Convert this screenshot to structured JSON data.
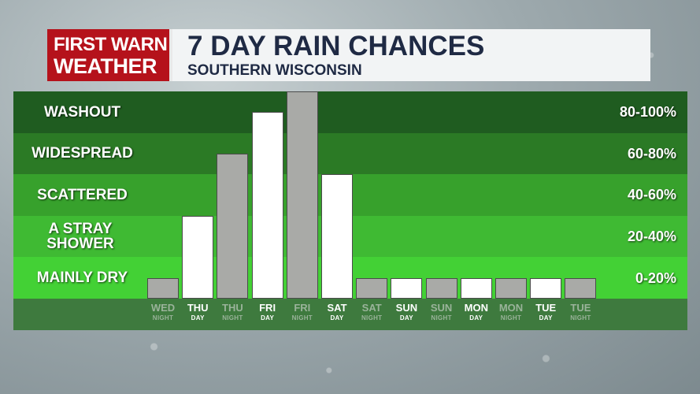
{
  "header": {
    "logo_line1": "FIRST WARN",
    "logo_line2": "WEATHER",
    "title": "7 DAY RAIN CHANCES",
    "subtitle": "SOUTHERN WISCONSIN"
  },
  "colors": {
    "brand_red": "#b5121b",
    "title_navy": "#1f2a44",
    "day_bar": "#ffffff",
    "night_bar": "#a9aaa7",
    "band_washout": "#1f5c20",
    "band_widespread": "#2b7a25",
    "band_scattered": "#37a12c",
    "band_stray": "#3fba33",
    "band_dry": "#43d135"
  },
  "chart_data": {
    "type": "bar",
    "title": "7 DAY RAIN CHANCES",
    "subtitle": "SOUTHERN WISCONSIN",
    "ylim": [
      0,
      100
    ],
    "bands": [
      {
        "label": "WASHOUT",
        "range": "80-100%",
        "from": 80,
        "to": 100
      },
      {
        "label": "WIDESPREAD",
        "range": "60-80%",
        "from": 60,
        "to": 80
      },
      {
        "label": "SCATTERED",
        "range": "40-60%",
        "from": 40,
        "to": 60
      },
      {
        "label": "A STRAY SHOWER",
        "range": "20-40%",
        "from": 20,
        "to": 40
      },
      {
        "label": "MAINLY DRY",
        "range": "0-20%",
        "from": 0,
        "to": 20
      }
    ],
    "categories": [
      {
        "day": "WED",
        "period": "NIGHT"
      },
      {
        "day": "THU",
        "period": "DAY"
      },
      {
        "day": "THU",
        "period": "NIGHT"
      },
      {
        "day": "FRI",
        "period": "DAY"
      },
      {
        "day": "FRI",
        "period": "NIGHT"
      },
      {
        "day": "SAT",
        "period": "DAY"
      },
      {
        "day": "SAT",
        "period": "NIGHT"
      },
      {
        "day": "SUN",
        "period": "DAY"
      },
      {
        "day": "SUN",
        "period": "NIGHT"
      },
      {
        "day": "MON",
        "period": "DAY"
      },
      {
        "day": "MON",
        "period": "NIGHT"
      },
      {
        "day": "TUE",
        "period": "DAY"
      },
      {
        "day": "TUE",
        "period": "NIGHT"
      }
    ],
    "values": [
      10,
      40,
      70,
      90,
      100,
      60,
      10,
      10,
      10,
      10,
      10,
      10,
      10
    ]
  }
}
